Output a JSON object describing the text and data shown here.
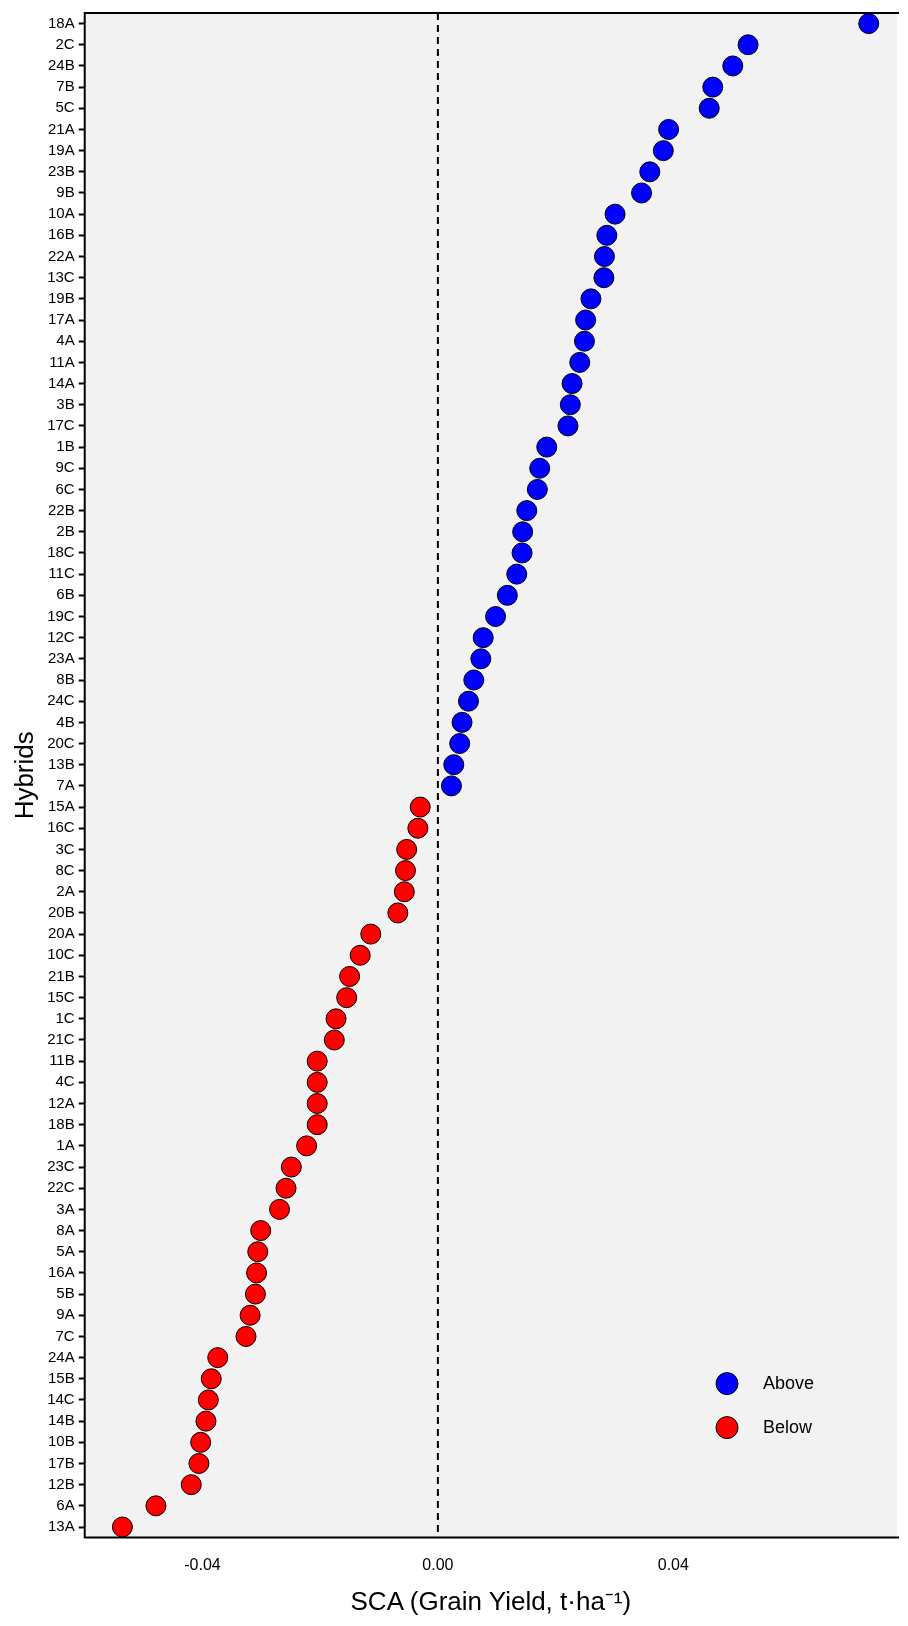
{
  "chart_data": {
    "type": "scatter",
    "xlabel": "SCA (Grain Yield, t·ha⁻¹)",
    "ylabel": "Hybrids",
    "categories": [
      "18A",
      "2C",
      "24B",
      "7B",
      "5C",
      "21A",
      "19A",
      "23B",
      "9B",
      "10A",
      "16B",
      "22A",
      "13C",
      "19B",
      "17A",
      "4A",
      "11A",
      "14A",
      "3B",
      "17C",
      "1B",
      "9C",
      "6C",
      "22B",
      "2B",
      "18C",
      "11C",
      "6B",
      "19C",
      "12C",
      "23A",
      "8B",
      "24C",
      "4B",
      "20C",
      "13B",
      "7A",
      "15A",
      "16C",
      "3C",
      "8C",
      "2A",
      "20B",
      "20A",
      "10C",
      "21B",
      "15C",
      "1C",
      "21C",
      "11B",
      "4C",
      "12A",
      "18B",
      "1A",
      "23C",
      "22C",
      "3A",
      "8A",
      "5A",
      "16A",
      "5B",
      "9A",
      "7C",
      "24A",
      "15B",
      "14C",
      "14B",
      "10B",
      "17B",
      "12B",
      "6A",
      "13A"
    ],
    "series": [
      {
        "name": "Above",
        "color": "#0000ff",
        "values": [
          0.0732,
          0.0527,
          0.0501,
          0.0467,
          0.0461,
          0.0392,
          0.0383,
          0.036,
          0.0346,
          0.0301,
          0.0287,
          0.0283,
          0.0282,
          0.026,
          0.0251,
          0.0249,
          0.0241,
          0.0228,
          0.0225,
          0.0221,
          0.0185,
          0.0173,
          0.0169,
          0.0151,
          0.0144,
          0.0143,
          0.0134,
          0.0118,
          0.0098,
          0.0077,
          0.0073,
          0.0061,
          0.0052,
          0.0041,
          0.0037,
          0.0027,
          0.0023,
          null,
          null,
          null,
          null,
          null,
          null,
          null,
          null,
          null,
          null,
          null,
          null,
          null,
          null,
          null,
          null,
          null,
          null,
          null,
          null,
          null,
          null,
          null,
          null,
          null,
          null,
          null,
          null,
          null,
          null,
          null,
          null,
          null,
          null,
          null
        ]
      },
      {
        "name": "Below",
        "color": "#ff0000",
        "values": [
          null,
          null,
          null,
          null,
          null,
          null,
          null,
          null,
          null,
          null,
          null,
          null,
          null,
          null,
          null,
          null,
          null,
          null,
          null,
          null,
          null,
          null,
          null,
          null,
          null,
          null,
          null,
          null,
          null,
          null,
          null,
          null,
          null,
          null,
          null,
          null,
          null,
          -0.003,
          -0.0034,
          -0.0053,
          -0.0055,
          -0.0057,
          -0.0068,
          -0.0114,
          -0.0132,
          -0.015,
          -0.0155,
          -0.0173,
          -0.0176,
          -0.0205,
          -0.0205,
          -0.0205,
          -0.0205,
          -0.0223,
          -0.0249,
          -0.0258,
          -0.0269,
          -0.0301,
          -0.0306,
          -0.0308,
          -0.031,
          -0.0319,
          -0.0326,
          -0.0374,
          -0.0385,
          -0.039,
          -0.0394,
          -0.0403,
          -0.0406,
          -0.0419,
          -0.0479,
          -0.0536
        ]
      }
    ],
    "xlim": [
      -0.06,
      0.078
    ],
    "xticks": [
      -0.04,
      {
        "value": 0,
        "label": "0.00"
      },
      0.04
    ],
    "ref_lines": [
      {
        "axis": "x",
        "value": 0,
        "color": "#000000",
        "line_style": "dashed"
      }
    ],
    "orientation": "horizontal",
    "grid": false,
    "legend": "bottom right",
    "marker": "circle"
  }
}
